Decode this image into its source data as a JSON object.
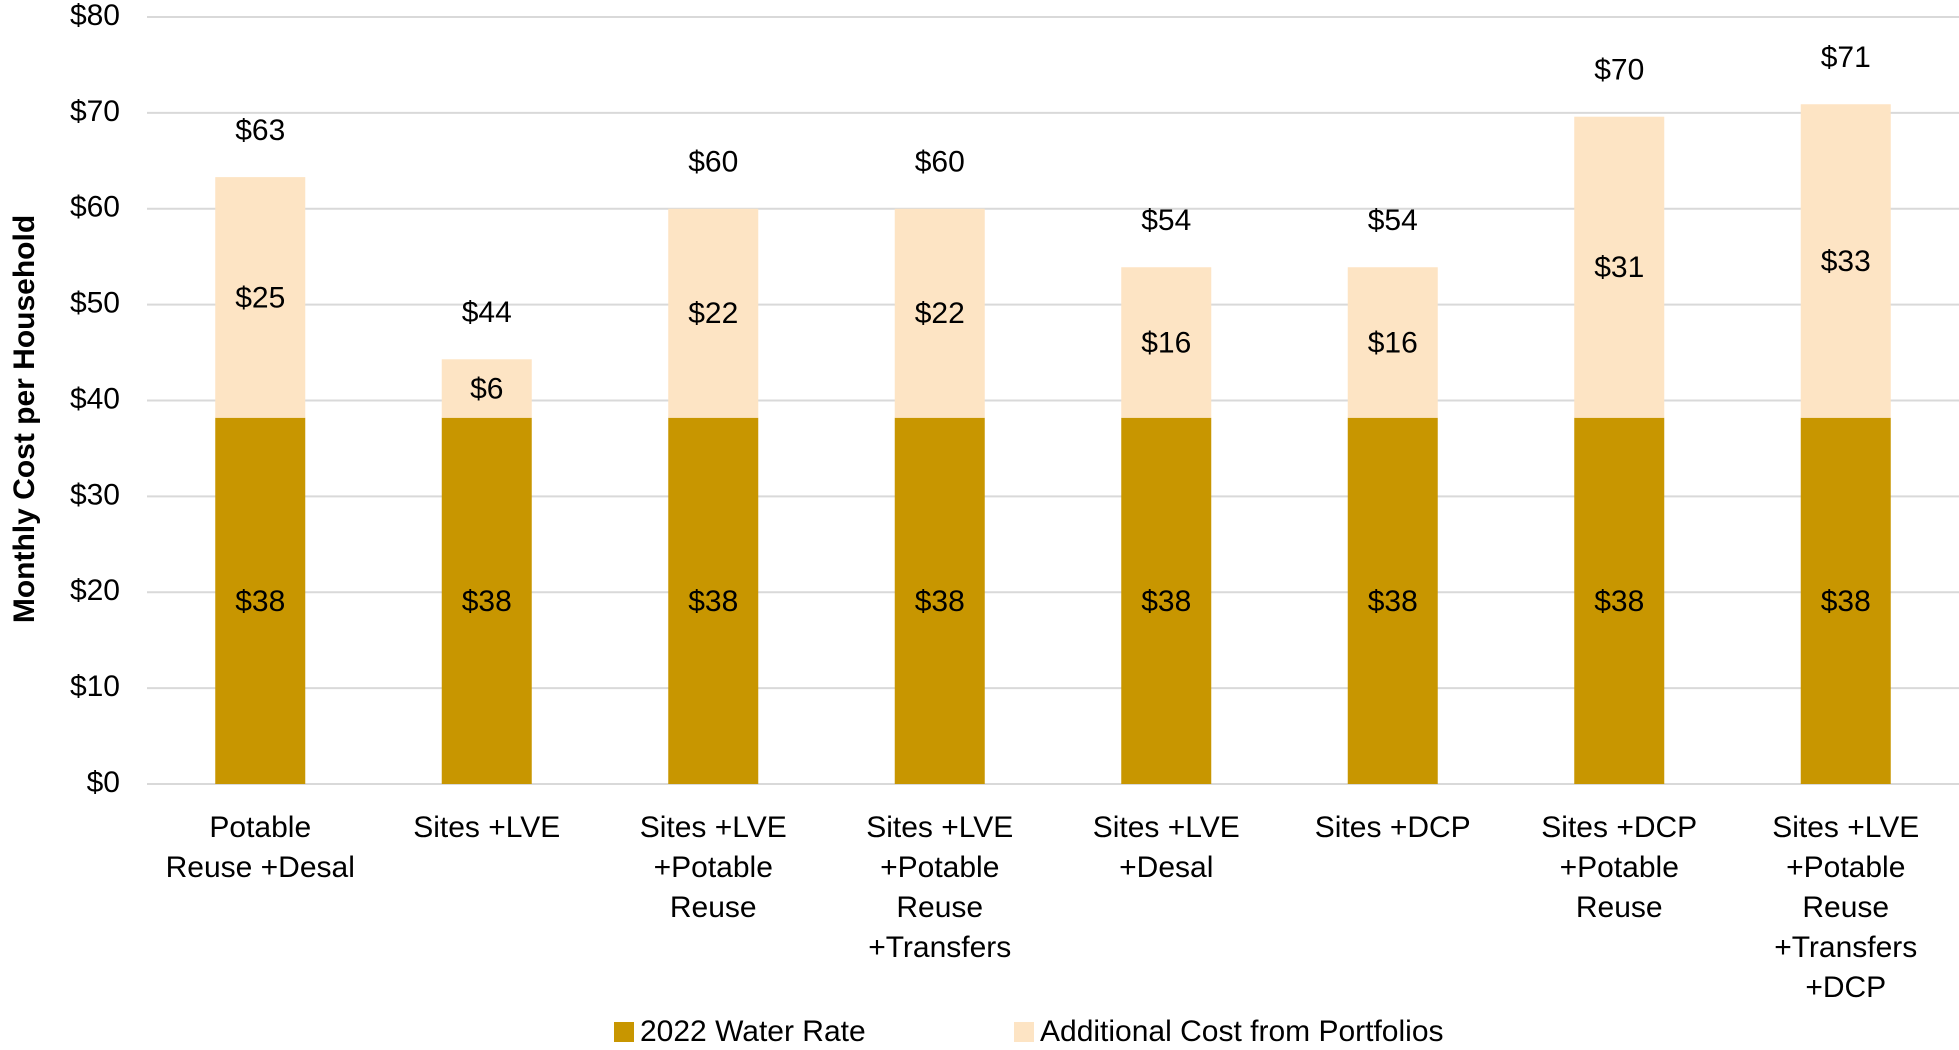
{
  "chart_data": {
    "type": "stacked_bar",
    "y_axis_label": "Monthly  Cost per Household",
    "categories": [
      [
        "Potable",
        "Reuse +Desal"
      ],
      [
        "Sites +LVE"
      ],
      [
        "Sites +LVE",
        "+Potable",
        "Reuse"
      ],
      [
        "Sites +LVE",
        "+Potable",
        "Reuse",
        "+Transfers"
      ],
      [
        "Sites +LVE",
        "+Desal"
      ],
      [
        "Sites +DCP"
      ],
      [
        "Sites +DCP",
        "+Potable",
        "Reuse"
      ],
      [
        "Sites +LVE",
        "+Potable",
        "Reuse",
        "+Transfers",
        "+DCP"
      ]
    ],
    "series": [
      {
        "name": "2022 Water Rate",
        "color": "#c89600",
        "values": [
          38.2,
          38.2,
          38.2,
          38.2,
          38.2,
          38.2,
          38.2,
          38.2
        ],
        "value_labels": [
          "$38",
          "$38",
          "$38",
          "$38",
          "$38",
          "$38",
          "$38",
          "$38"
        ]
      },
      {
        "name": "Additional Cost from Portfolios",
        "color": "#fde4c4",
        "values": [
          25.1,
          6.1,
          21.8,
          21.8,
          15.7,
          15.7,
          31.4,
          32.7
        ],
        "value_labels": [
          "$25",
          "$6",
          "$22",
          "$22",
          "$16",
          "$16",
          "$31",
          "$33"
        ]
      }
    ],
    "total_labels": [
      "$63",
      "$44",
      "$60",
      "$60",
      "$54",
      "$54",
      "$70",
      "$71"
    ],
    "ylim": [
      0,
      80
    ],
    "yticks": [
      {
        "value": 0,
        "label": "$0"
      },
      {
        "value": 10,
        "label": "$10"
      },
      {
        "value": 20,
        "label": "$20"
      },
      {
        "value": 30,
        "label": "$30"
      },
      {
        "value": 40,
        "label": "$40"
      },
      {
        "value": 50,
        "label": "$50"
      },
      {
        "value": 60,
        "label": "$60"
      },
      {
        "value": 70,
        "label": "$70"
      },
      {
        "value": 80,
        "label": "$80"
      }
    ],
    "grid": true,
    "legend": "bottom"
  }
}
